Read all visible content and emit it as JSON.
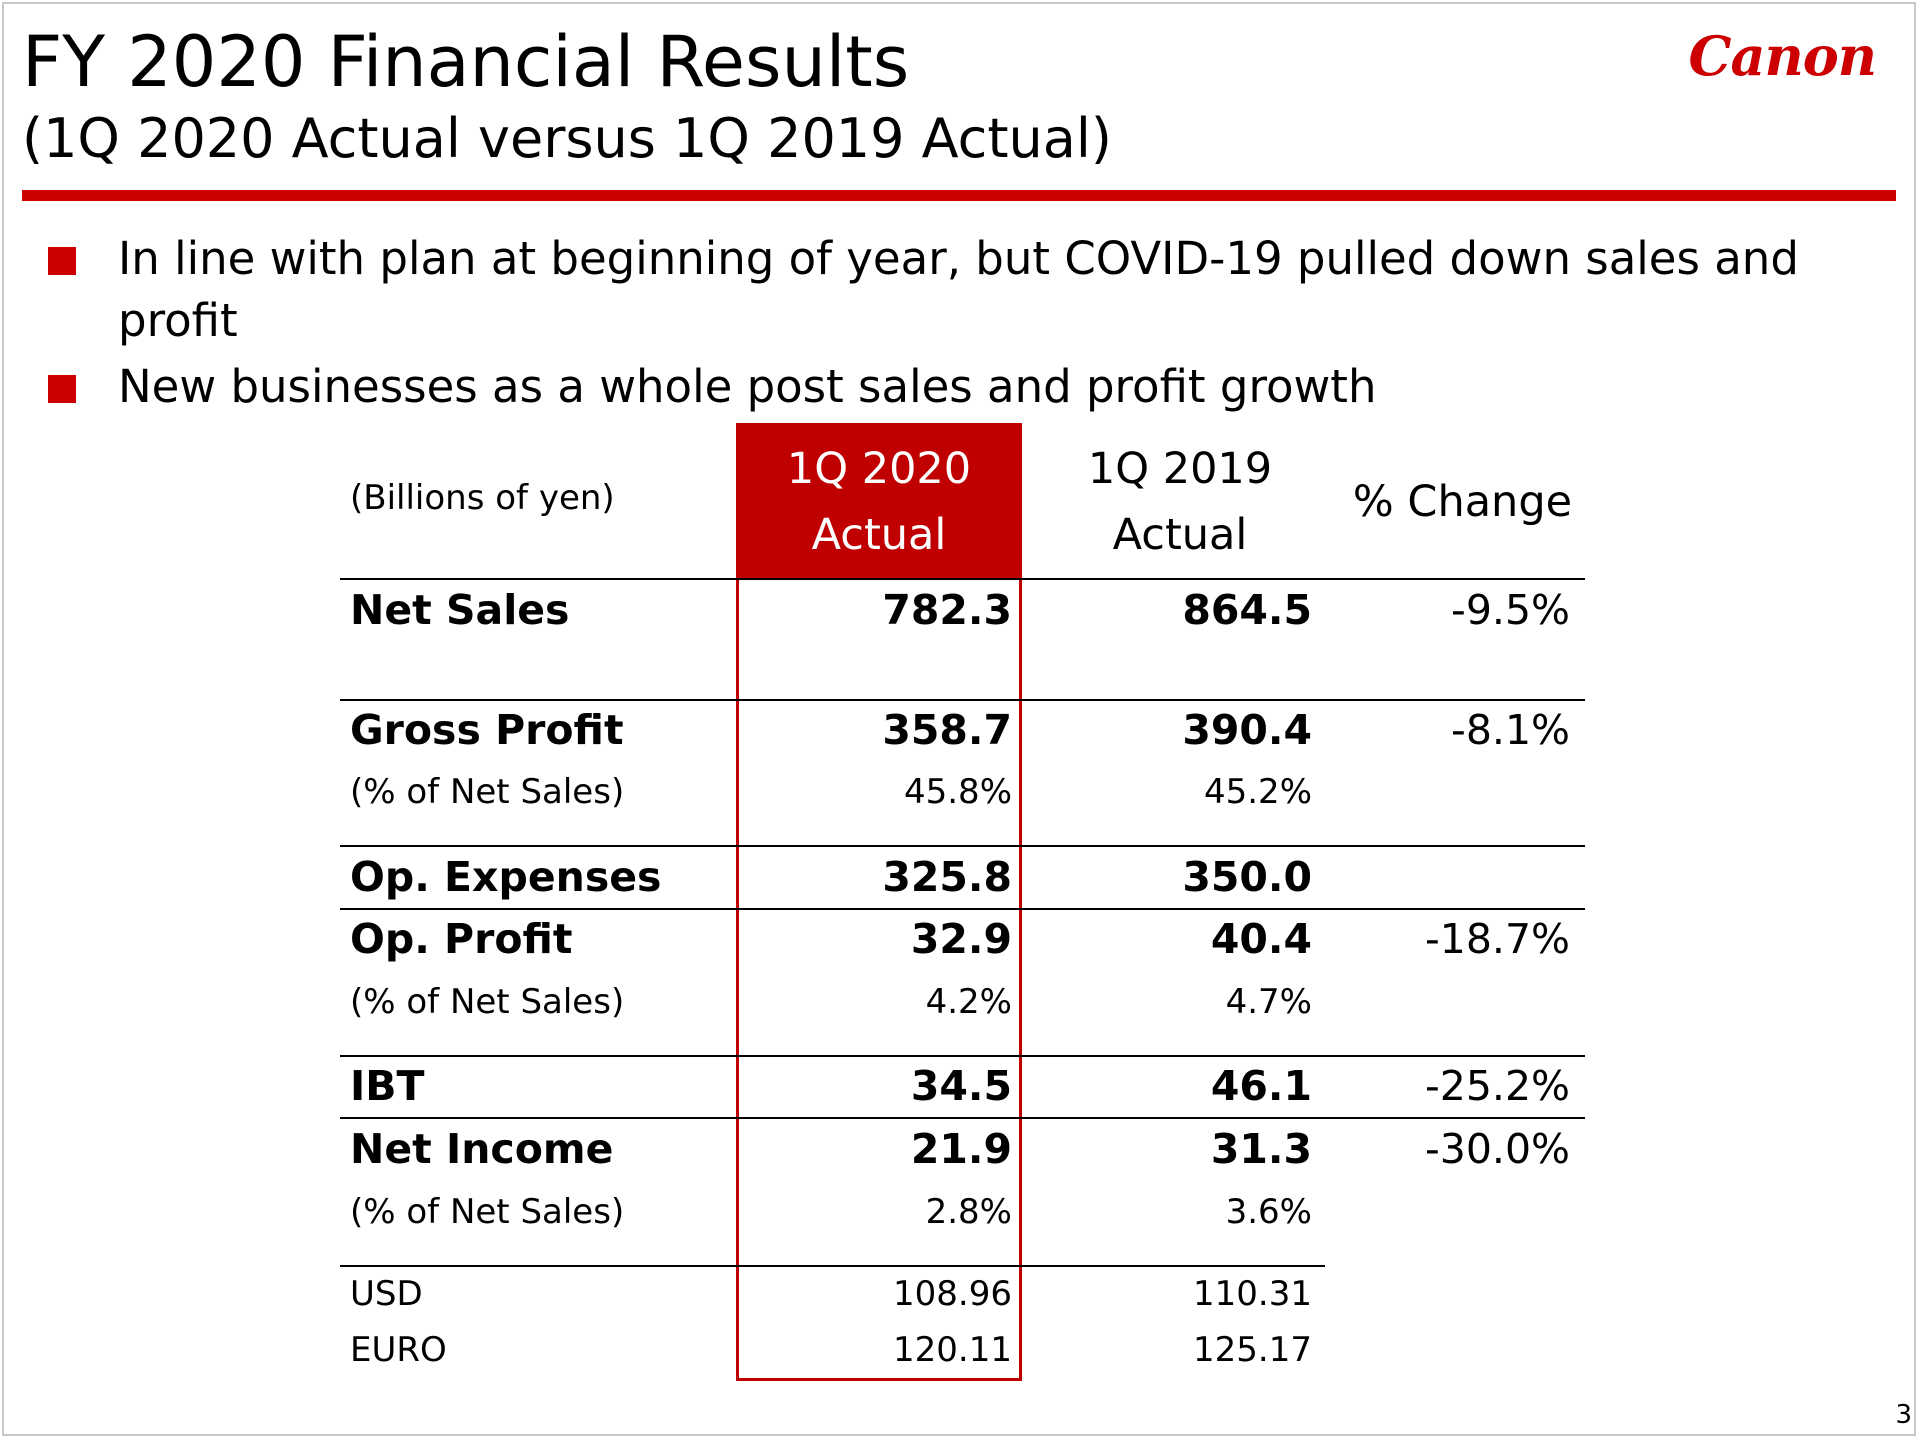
{
  "slide": {
    "title": "FY 2020 Financial Results",
    "subtitle": "(1Q 2020 Actual versus 1Q 2019 Actual)",
    "logo": "Canon",
    "page_number": "3",
    "accent_color": "#cc0000"
  },
  "bullets": [
    "In line with plan at beginning of year, but COVID-19 pulled down sales and profit",
    "New businesses as a whole post sales and profit growth"
  ],
  "table": {
    "units": "(Billions of yen)",
    "col1": {
      "line1": "1Q 2020",
      "line2": "Actual"
    },
    "col2": {
      "line1": "1Q 2019",
      "line2": "Actual"
    },
    "col3": "% Change",
    "net_sales": {
      "label": "Net Sales",
      "a": "782.3",
      "b": "864.5",
      "chg": "-9.5%"
    },
    "gross_profit": {
      "label": "Gross Profit",
      "a": "358.7",
      "b": "390.4",
      "chg": "-8.1%"
    },
    "gross_profit_pct": {
      "label": "(% of Net Sales)",
      "a": "45.8%",
      "b": "45.2%"
    },
    "op_expenses": {
      "label": "Op. Expenses",
      "a": "325.8",
      "b": "350.0"
    },
    "op_profit": {
      "label": "Op. Profit",
      "a": "32.9",
      "b": "40.4",
      "chg": "-18.7%"
    },
    "op_profit_pct": {
      "label": "(% of Net Sales)",
      "a": "4.2%",
      "b": "4.7%"
    },
    "ibt": {
      "label": "IBT",
      "a": "34.5",
      "b": "46.1",
      "chg": "-25.2%"
    },
    "net_income": {
      "label": "Net Income",
      "a": "21.9",
      "b": "31.3",
      "chg": "-30.0%"
    },
    "net_income_pct": {
      "label": "(% of Net Sales)",
      "a": "2.8%",
      "b": "3.6%"
    },
    "usd": {
      "label": "USD",
      "a": "108.96",
      "b": "110.31"
    },
    "euro": {
      "label": "EURO",
      "a": "120.11",
      "b": "125.17"
    }
  }
}
